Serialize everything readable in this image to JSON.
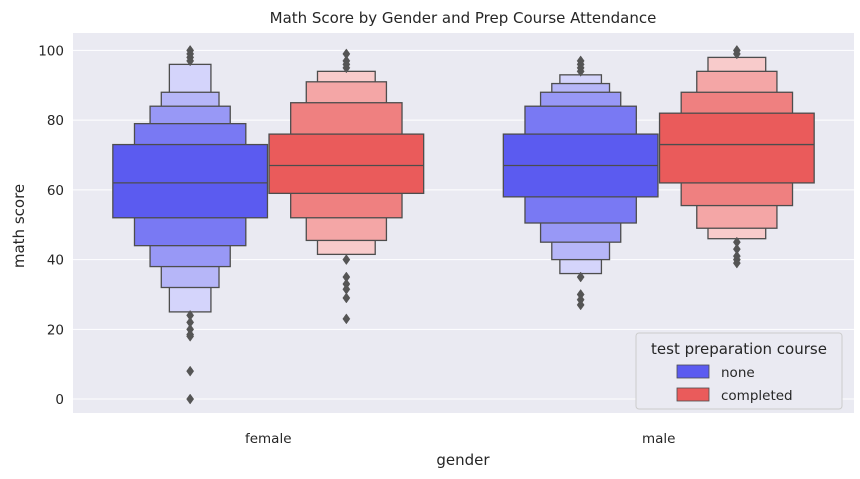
{
  "chart_data": {
    "type": "boxen",
    "title": "Math Score by Gender and Prep Course Attendance",
    "xlabel": "gender",
    "ylabel": "math score",
    "categories": [
      "female",
      "male"
    ],
    "ylim": [
      -4,
      105
    ],
    "yticks": [
      0,
      20,
      40,
      60,
      80,
      100
    ],
    "grid": true,
    "legend": {
      "title": "test preparation course",
      "position": "bottom-right",
      "entries": [
        "none",
        "completed"
      ]
    },
    "series": [
      {
        "name": "none",
        "color": "#5b5bf0",
        "groups": [
          {
            "category": "female",
            "median": 62,
            "boxes": [
              [
                52,
                73
              ],
              [
                44,
                79
              ],
              [
                38,
                84
              ],
              [
                32,
                88
              ],
              [
                25,
                96
              ]
            ],
            "outliers": [
              24,
              22,
              20,
              18.5,
              18,
              8,
              0,
              97,
              98,
              99,
              100
            ]
          },
          {
            "category": "male",
            "median": 67,
            "boxes": [
              [
                58,
                76
              ],
              [
                50.5,
                84
              ],
              [
                45,
                88
              ],
              [
                40,
                90.5
              ],
              [
                36,
                93
              ]
            ],
            "outliers": [
              35,
              30,
              28.5,
              27,
              94,
              95,
              96,
              97
            ]
          }
        ]
      },
      {
        "name": "completed",
        "color": "#ea5b5b",
        "groups": [
          {
            "category": "female",
            "median": 67,
            "boxes": [
              [
                59,
                76
              ],
              [
                52,
                85
              ],
              [
                45.5,
                91
              ],
              [
                41.5,
                94
              ]
            ],
            "outliers": [
              40,
              35,
              33,
              31.5,
              29,
              23,
              95,
              96,
              97,
              99
            ]
          },
          {
            "category": "male",
            "median": 73,
            "boxes": [
              [
                62,
                82
              ],
              [
                55.5,
                88
              ],
              [
                49,
                94
              ],
              [
                46,
                98
              ]
            ],
            "outliers": [
              45,
              43,
              41,
              40,
              39,
              99,
              100
            ]
          }
        ]
      }
    ]
  }
}
